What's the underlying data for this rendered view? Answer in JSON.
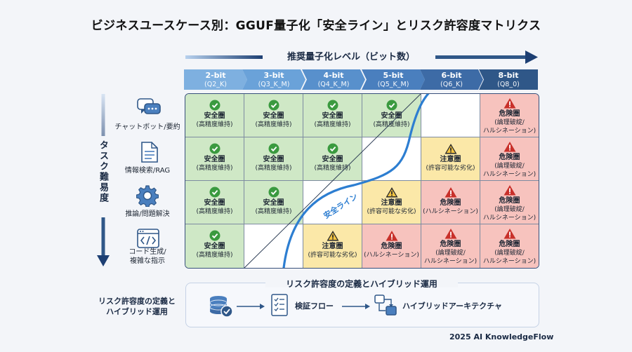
{
  "title": "ビジネスユースケース別：GGUF量子化「安全ライン」とリスク許容度マトリクス",
  "x_axis_label": "推奨量子化レベル（ビット数）",
  "y_axis_label": "タスク難易度",
  "columns": [
    {
      "bits": "2-bit",
      "quant": "(Q2_K)"
    },
    {
      "bits": "3-bit",
      "quant": "(Q3_K_M)"
    },
    {
      "bits": "4-bit",
      "quant": "(Q4_K_M)"
    },
    {
      "bits": "5-bit",
      "quant": "(Q5_K_M)"
    },
    {
      "bits": "6-bit",
      "quant": "(Q6_K)"
    },
    {
      "bits": "8-bit",
      "quant": "(Q8_0)"
    }
  ],
  "column_colors": [
    "#7eb0e0",
    "#6aa2d9",
    "#5890cc",
    "#4a7fbe",
    "#3d6ba6",
    "#2f5788"
  ],
  "rows": [
    {
      "label_lines": [
        "チャットボット/要約"
      ],
      "icon": "chat-bubbles-icon"
    },
    {
      "label_lines": [
        "情報検索/RAG"
      ],
      "icon": "document-icon"
    },
    {
      "label_lines": [
        "推論/問題解決"
      ],
      "icon": "gear-icon"
    },
    {
      "label_lines": [
        "コード生成/",
        "複雑な指示"
      ],
      "icon": "code-window-icon"
    }
  ],
  "cell_types": {
    "safe": {
      "title": "安全圏",
      "lines": [
        "(高精度維持)"
      ],
      "color": "#cfe8c6",
      "icon": "check-circle-icon"
    },
    "caution": {
      "title": "注意圏",
      "lines": [
        "(許容可能な劣化)"
      ],
      "color": "#fbe8a8",
      "icon": "warning-triangle-icon"
    },
    "danger_halluc": {
      "title": "危険圏",
      "lines": [
        "(ハルシネーション)"
      ],
      "color": "#f7c3be",
      "icon": "warning-red-icon"
    },
    "danger_full": {
      "title": "危険圏",
      "lines": [
        "(論理破綻/",
        "ハルシネーション)"
      ],
      "color": "#f7c3be",
      "icon": "warning-red-icon"
    }
  },
  "matrix": [
    [
      "safe",
      "safe",
      "safe",
      "safe",
      "empty",
      "danger_full"
    ],
    [
      "safe",
      "safe",
      "safe",
      "empty",
      "caution",
      "danger_full"
    ],
    [
      "safe",
      "safe",
      "empty",
      "caution",
      "danger_halluc",
      "danger_full"
    ],
    [
      "safe",
      "empty",
      "caution",
      "danger_halluc",
      "danger_full",
      "danger_full"
    ]
  ],
  "safety_line_label": "安全ライン",
  "bottom": {
    "left_label_lines": [
      "リスク許容度の定義と",
      "ハイブリッド運用"
    ],
    "title": "リスク許容度の定義とハイブリッド運用",
    "steps": [
      {
        "icon": "database-check-icon",
        "label": ""
      },
      {
        "icon": "checklist-icon",
        "label": "検証フロー"
      },
      {
        "icon": "hybrid-architecture-icon",
        "label": "ハイブリッドアーキテクチャ"
      }
    ]
  },
  "footer": "2025 AI KnowledgeFlow"
}
